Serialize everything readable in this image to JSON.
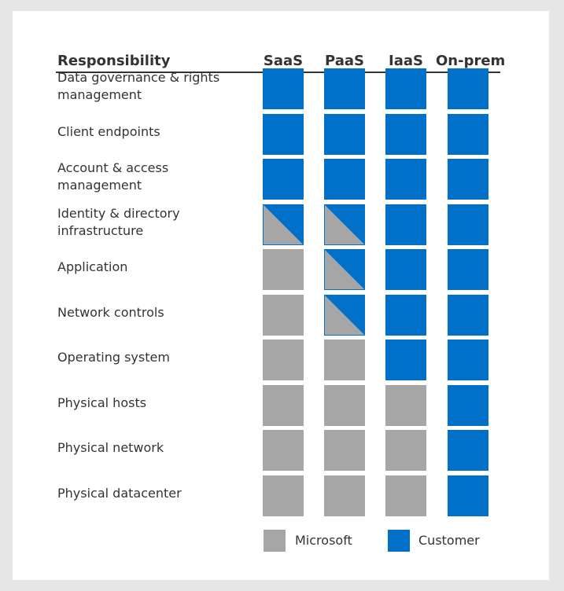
{
  "header": {
    "responsibility": "Responsibility",
    "columns": [
      "SaaS",
      "PaaS",
      "IaaS",
      "On-prem"
    ]
  },
  "colors": {
    "microsoft": "#a6a6a6",
    "customer": "#0070c9"
  },
  "rows": [
    {
      "label": "Data governance & rights management",
      "cells": [
        "customer",
        "customer",
        "customer",
        "customer"
      ]
    },
    {
      "label": "Client endpoints",
      "cells": [
        "customer",
        "customer",
        "customer",
        "customer"
      ]
    },
    {
      "label": "Account & access management",
      "cells": [
        "customer",
        "customer",
        "customer",
        "customer"
      ]
    },
    {
      "label": "Identity & directory infrastructure",
      "cells": [
        "shared",
        "shared",
        "customer",
        "customer"
      ]
    },
    {
      "label": "Application",
      "cells": [
        "microsoft",
        "shared",
        "customer",
        "customer"
      ]
    },
    {
      "label": "Network controls",
      "cells": [
        "microsoft",
        "shared",
        "customer",
        "customer"
      ]
    },
    {
      "label": "Operating system",
      "cells": [
        "microsoft",
        "microsoft",
        "customer",
        "customer"
      ]
    },
    {
      "label": "Physical hosts",
      "cells": [
        "microsoft",
        "microsoft",
        "microsoft",
        "customer"
      ]
    },
    {
      "label": "Physical network",
      "cells": [
        "microsoft",
        "microsoft",
        "microsoft",
        "customer"
      ]
    },
    {
      "label": "Physical datacenter",
      "cells": [
        "microsoft",
        "microsoft",
        "microsoft",
        "customer"
      ]
    }
  ],
  "legend": {
    "microsoft": "Microsoft",
    "customer": "Customer"
  }
}
